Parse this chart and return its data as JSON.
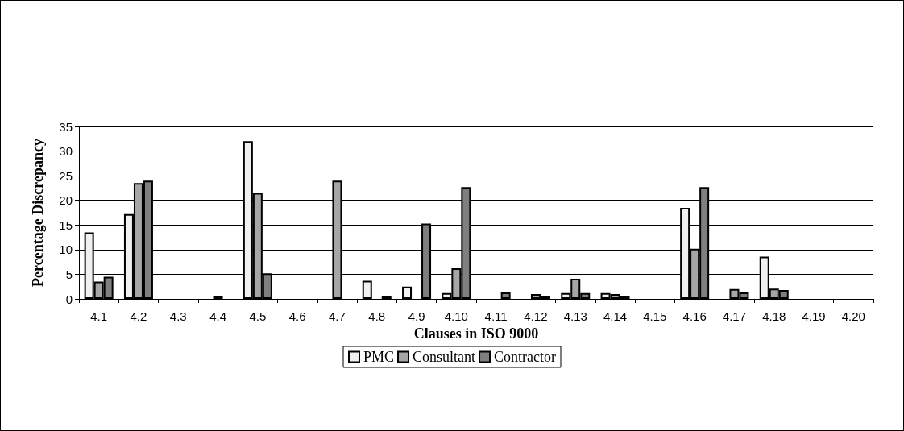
{
  "chart_data": {
    "type": "bar",
    "xlabel": "Clauses in ISO 9000",
    "ylabel": "Percentage Discrepancy",
    "categories": [
      "4.1",
      "4.2",
      "4.3",
      "4.4",
      "4.5",
      "4.6",
      "4.7",
      "4.8",
      "4.9",
      "4.10",
      "4.11",
      "4.12",
      "4.13",
      "4.14",
      "4.15",
      "4.16",
      "4.17",
      "4.18",
      "4.19",
      "4.20"
    ],
    "series": [
      {
        "name": "PMC",
        "color": "#f0f0f0",
        "values": [
          13.5,
          17.2,
          null,
          null,
          32,
          null,
          null,
          3.7,
          2.5,
          1.2,
          null,
          null,
          1.2,
          1.2,
          null,
          18.5,
          null,
          8.6,
          null,
          null
        ]
      },
      {
        "name": "Consultant",
        "color": "#a6a6a6",
        "values": [
          3.5,
          23.5,
          null,
          0.5,
          21.5,
          null,
          24,
          null,
          null,
          6.2,
          null,
          1.0,
          4.1,
          1.0,
          null,
          10.2,
          2.0,
          2.1,
          null,
          null
        ]
      },
      {
        "name": "Contractor",
        "color": "#7f7f7f",
        "values": [
          4.5,
          24,
          null,
          null,
          5.2,
          null,
          null,
          0.6,
          15.3,
          22.7,
          1.3,
          0.6,
          1.2,
          0.6,
          null,
          22.7,
          1.3,
          1.8,
          null,
          null
        ]
      }
    ],
    "ylim": [
      0,
      35
    ],
    "yticks": [
      0,
      5,
      10,
      15,
      20,
      25,
      30,
      35
    ],
    "grid": "y",
    "legend": "bottom"
  }
}
